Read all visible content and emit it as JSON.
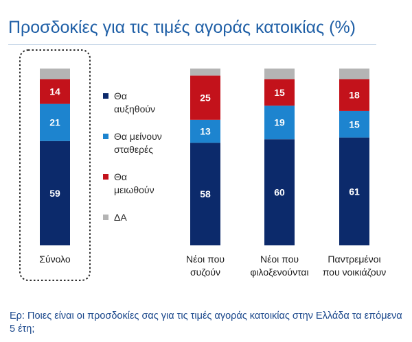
{
  "title": "Προσδοκίες για τις τιμές αγοράς κατοικίας (%)",
  "question": "Ερ: Ποιες είναι οι προσδοκίες σας για τις τιμές αγοράς κατοικίας στην Ελλάδα τα επόμενα 5 έτη;",
  "colors": {
    "increase": "#0c2a6b",
    "stay": "#1d84cf",
    "decrease": "#c3121b",
    "dk": "#b4b4b4",
    "title": "#1f5fa6"
  },
  "chart_data": {
    "type": "bar",
    "stacked": true,
    "title": "Προσδοκίες για τις τιμές αγοράς κατοικίας (%)",
    "ylim": [
      0,
      100
    ],
    "categories": [
      [
        "Σύνολο"
      ],
      [
        "Νέοι που",
        "συζούν"
      ],
      [
        "Νέοι που",
        "φιλοξενούνται"
      ],
      [
        "Παντρεμένοι",
        "που νοικιάζουν"
      ]
    ],
    "series": [
      {
        "name": [
          "Θα",
          "αυξηθούν"
        ],
        "key": "increase",
        "values": [
          59,
          58,
          60,
          61
        ]
      },
      {
        "name": [
          "Θα μείνουν",
          "σταθερές"
        ],
        "key": "stay",
        "values": [
          21,
          13,
          19,
          15
        ]
      },
      {
        "name": [
          "Θα",
          "μειωθούν"
        ],
        "key": "decrease",
        "values": [
          14,
          25,
          15,
          18
        ]
      },
      {
        "name": [
          "ΔΑ"
        ],
        "key": "dk",
        "values": [
          6,
          4,
          6,
          6
        ],
        "show_labels": false
      }
    ],
    "highlighted_category": 0
  }
}
